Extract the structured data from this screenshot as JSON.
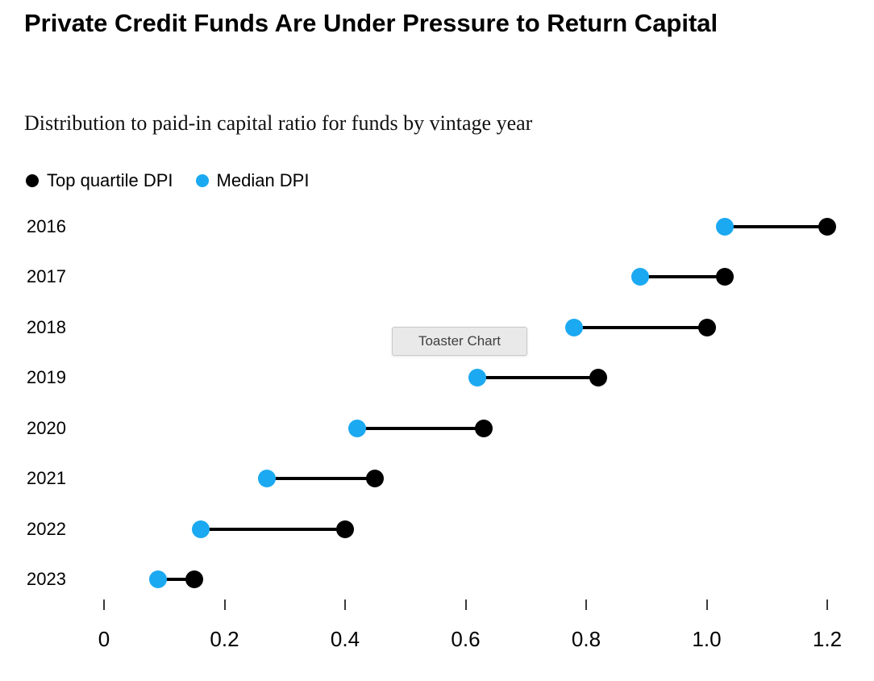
{
  "tooltip": {
    "label": "Toaster Chart"
  },
  "chart_data": {
    "type": "dumbbell",
    "title": "Private Credit Funds Are Under Pressure to Return Capital",
    "subtitle": "Distribution to paid-in capital ratio for funds by vintage year",
    "categories": [
      "2016",
      "2017",
      "2018",
      "2019",
      "2020",
      "2021",
      "2022",
      "2023"
    ],
    "series": [
      {
        "name": "Top quartile DPI",
        "color": "#000000",
        "values": [
          1.2,
          1.03,
          1.0,
          0.82,
          0.63,
          0.45,
          0.4,
          0.15
        ]
      },
      {
        "name": "Median DPI",
        "color": "#1ba9f1",
        "values": [
          1.03,
          0.89,
          0.78,
          0.62,
          0.42,
          0.27,
          0.16,
          0.09
        ]
      }
    ],
    "xlabel": "",
    "ylabel": "",
    "xlim": [
      0,
      1.2
    ],
    "x_ticks": [
      0,
      0.2,
      0.4,
      0.6,
      0.8,
      1.0,
      1.2
    ],
    "x_tick_labels": [
      "0",
      "0.2",
      "0.4",
      "0.6",
      "0.8",
      "1.0",
      "1.2"
    ],
    "grid": false,
    "legend_position": "top-left"
  }
}
